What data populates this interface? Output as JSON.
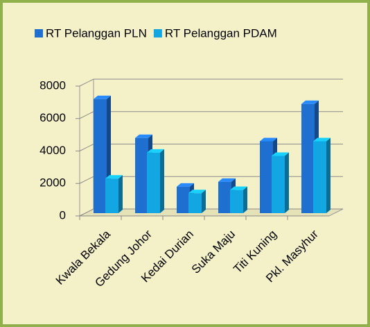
{
  "chart_data": {
    "type": "bar3d",
    "categories": [
      "Kwala Bekala",
      "Gedung Johor",
      "Kedai Durian",
      "Suka Maju",
      "Titi Kuning",
      "Pkl. Masyhur"
    ],
    "series": [
      {
        "name": "RT Pelanggan PLN",
        "color": "#1f6fd0",
        "values": [
          7200,
          4800,
          1800,
          2100,
          4600,
          6900
        ]
      },
      {
        "name": "RT Pelanggan PDAM",
        "color": "#12a7e3",
        "values": [
          2300,
          3900,
          1400,
          1600,
          3700,
          4600
        ]
      }
    ],
    "ylim": [
      0,
      8000
    ],
    "yticks": [
      0,
      2000,
      4000,
      6000,
      8000
    ],
    "grid": true,
    "legend": "top"
  }
}
